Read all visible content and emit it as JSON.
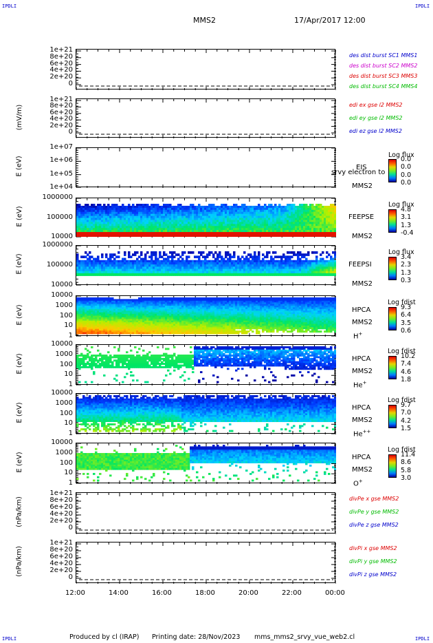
{
  "corners": {
    "tl": "IPDLI",
    "tr": "IPDLI",
    "bl": "IPDLI",
    "br": "IPDLI"
  },
  "header": {
    "mission": "MMS2",
    "date": "17/Apr/2017 12:00"
  },
  "footer": {
    "produced": "Produced by cl (IRAP)",
    "printing": "Printing date: 28/Nov/2023",
    "file": "mms_mms2_srvy_vue_web2.cl"
  },
  "colors": {
    "blue": "#0000cc",
    "magenta": "#cc00cc",
    "red": "#dd0000",
    "green": "#00bb00",
    "darkblue": "#000099"
  },
  "x_axis": {
    "ticks": [
      "12:00",
      "14:00",
      "16:00",
      "18:00",
      "20:00",
      "22:00",
      "00:00"
    ]
  },
  "chart_data": [
    {
      "type": "line",
      "id": "des_dist",
      "ylabel": "",
      "ticks": [
        "1e+21",
        "8e+20",
        "6e+20",
        "4e+20",
        "2e+20",
        "0"
      ],
      "ylim": [
        0,
        1e+21
      ],
      "legend": [
        {
          "name": "des dist burst SC1 MMS1",
          "color": "#0000cc"
        },
        {
          "name": "des dist burst SC2 MMS2",
          "color": "#cc00cc"
        },
        {
          "name": "des dist burst SC3 MMS3",
          "color": "#dd0000"
        },
        {
          "name": "des dist burst SC4 MMS4",
          "color": "#00bb00"
        }
      ],
      "series": []
    },
    {
      "type": "line",
      "id": "edi",
      "ylabel": "(mV/m)",
      "ticks": [
        "1e+21",
        "8e+20",
        "6e+20",
        "4e+20",
        "2e+20",
        "0"
      ],
      "ylim": [
        0,
        1e+21
      ],
      "legend": [
        {
          "name": "edi ex gse l2 MMS2",
          "color": "#dd0000"
        },
        {
          "name": "edi ey gse l2 MMS2",
          "color": "#00bb00"
        },
        {
          "name": "edi ez gse l2 MMS2",
          "color": "#0000cc"
        }
      ],
      "series": []
    },
    {
      "type": "heatmap",
      "id": "eis",
      "ylabel": "E (eV)",
      "ticks": [
        "1e+07",
        "1e+06",
        "1e+05",
        "1e+04"
      ],
      "instrument": "EIS",
      "overlay": "srvy electron to",
      "sc": "MMS2",
      "cbar_title": "Log flux",
      "cbar_ticks": [
        "0.0",
        "0.0",
        "0.0",
        "0.0"
      ]
    },
    {
      "type": "heatmap",
      "id": "feepse",
      "ylabel": "E (eV)",
      "ticks": [
        "1000000",
        "100000",
        "10000"
      ],
      "instrument": "FEEPSE",
      "sc": "MMS2",
      "cbar_title": "Log flux",
      "cbar_ticks": [
        "4.8",
        "3.1",
        "1.3",
        "-0.4"
      ]
    },
    {
      "type": "heatmap",
      "id": "feepsi",
      "ylabel": "E (eV)",
      "ticks": [
        "1000000",
        "100000",
        "10000"
      ],
      "instrument": "FEEPSI",
      "sc": "MMS2",
      "cbar_title": "Log flux",
      "cbar_ticks": [
        "3.4",
        "2.3",
        "1.3",
        "0.3"
      ]
    },
    {
      "type": "heatmap",
      "id": "hpca_h",
      "ylabel": "E (eV)",
      "ticks": [
        "10000",
        "1000",
        "100",
        "10",
        "1"
      ],
      "instrument": "HPCA",
      "sc": "MMS2",
      "species": "H",
      "sup": "+",
      "cbar_title": "Log fdist",
      "cbar_ticks": [
        "9.3",
        "6.4",
        "3.5",
        "0.6"
      ]
    },
    {
      "type": "heatmap",
      "id": "hpca_he",
      "ylabel": "E (eV)",
      "ticks": [
        "10000",
        "1000",
        "100",
        "10",
        "1"
      ],
      "instrument": "HPCA",
      "sc": "MMS2",
      "species": "He",
      "sup": "+",
      "cbar_title": "Log fdist",
      "cbar_ticks": [
        "10.2",
        "7.4",
        "4.6",
        "1.8"
      ]
    },
    {
      "type": "heatmap",
      "id": "hpca_hepp",
      "ylabel": "E (eV)",
      "ticks": [
        "10000",
        "1000",
        "100",
        "10",
        "1"
      ],
      "instrument": "HPCA",
      "sc": "MMS2",
      "species": "He",
      "sup": "++",
      "cbar_title": "Log fdist",
      "cbar_ticks": [
        "9.7",
        "7.0",
        "4.2",
        "1.5"
      ]
    },
    {
      "type": "heatmap",
      "id": "hpca_o",
      "ylabel": "E (eV)",
      "ticks": [
        "10000",
        "1000",
        "100",
        "10",
        "1"
      ],
      "instrument": "HPCA",
      "sc": "MMS2",
      "species": "O",
      "sup": "+",
      "cbar_title": "Log fdist",
      "cbar_ticks": [
        "11.4",
        "8.6",
        "5.8",
        "3.0"
      ]
    },
    {
      "type": "line",
      "id": "divpe",
      "ylabel": "(nPa/km)",
      "ticks": [
        "1e+21",
        "8e+20",
        "6e+20",
        "4e+20",
        "2e+20",
        "0"
      ],
      "ylim": [
        0,
        1e+21
      ],
      "legend": [
        {
          "name": "divPe x gse MMS2",
          "color": "#dd0000"
        },
        {
          "name": "divPe y gse MMS2",
          "color": "#00bb00"
        },
        {
          "name": "divPe z gse MMS2",
          "color": "#0000cc"
        }
      ],
      "series": []
    },
    {
      "type": "line",
      "id": "divpi",
      "ylabel": "(nPa/km)",
      "ticks": [
        "1e+21",
        "8e+20",
        "6e+20",
        "4e+20",
        "2e+20",
        "0"
      ],
      "ylim": [
        0,
        1e+21
      ],
      "legend": [
        {
          "name": "divPi x gse MMS2",
          "color": "#dd0000"
        },
        {
          "name": "divPi y gse MMS2",
          "color": "#00bb00"
        },
        {
          "name": "divPi z gse MMS2",
          "color": "#0000cc"
        }
      ],
      "series": []
    }
  ]
}
